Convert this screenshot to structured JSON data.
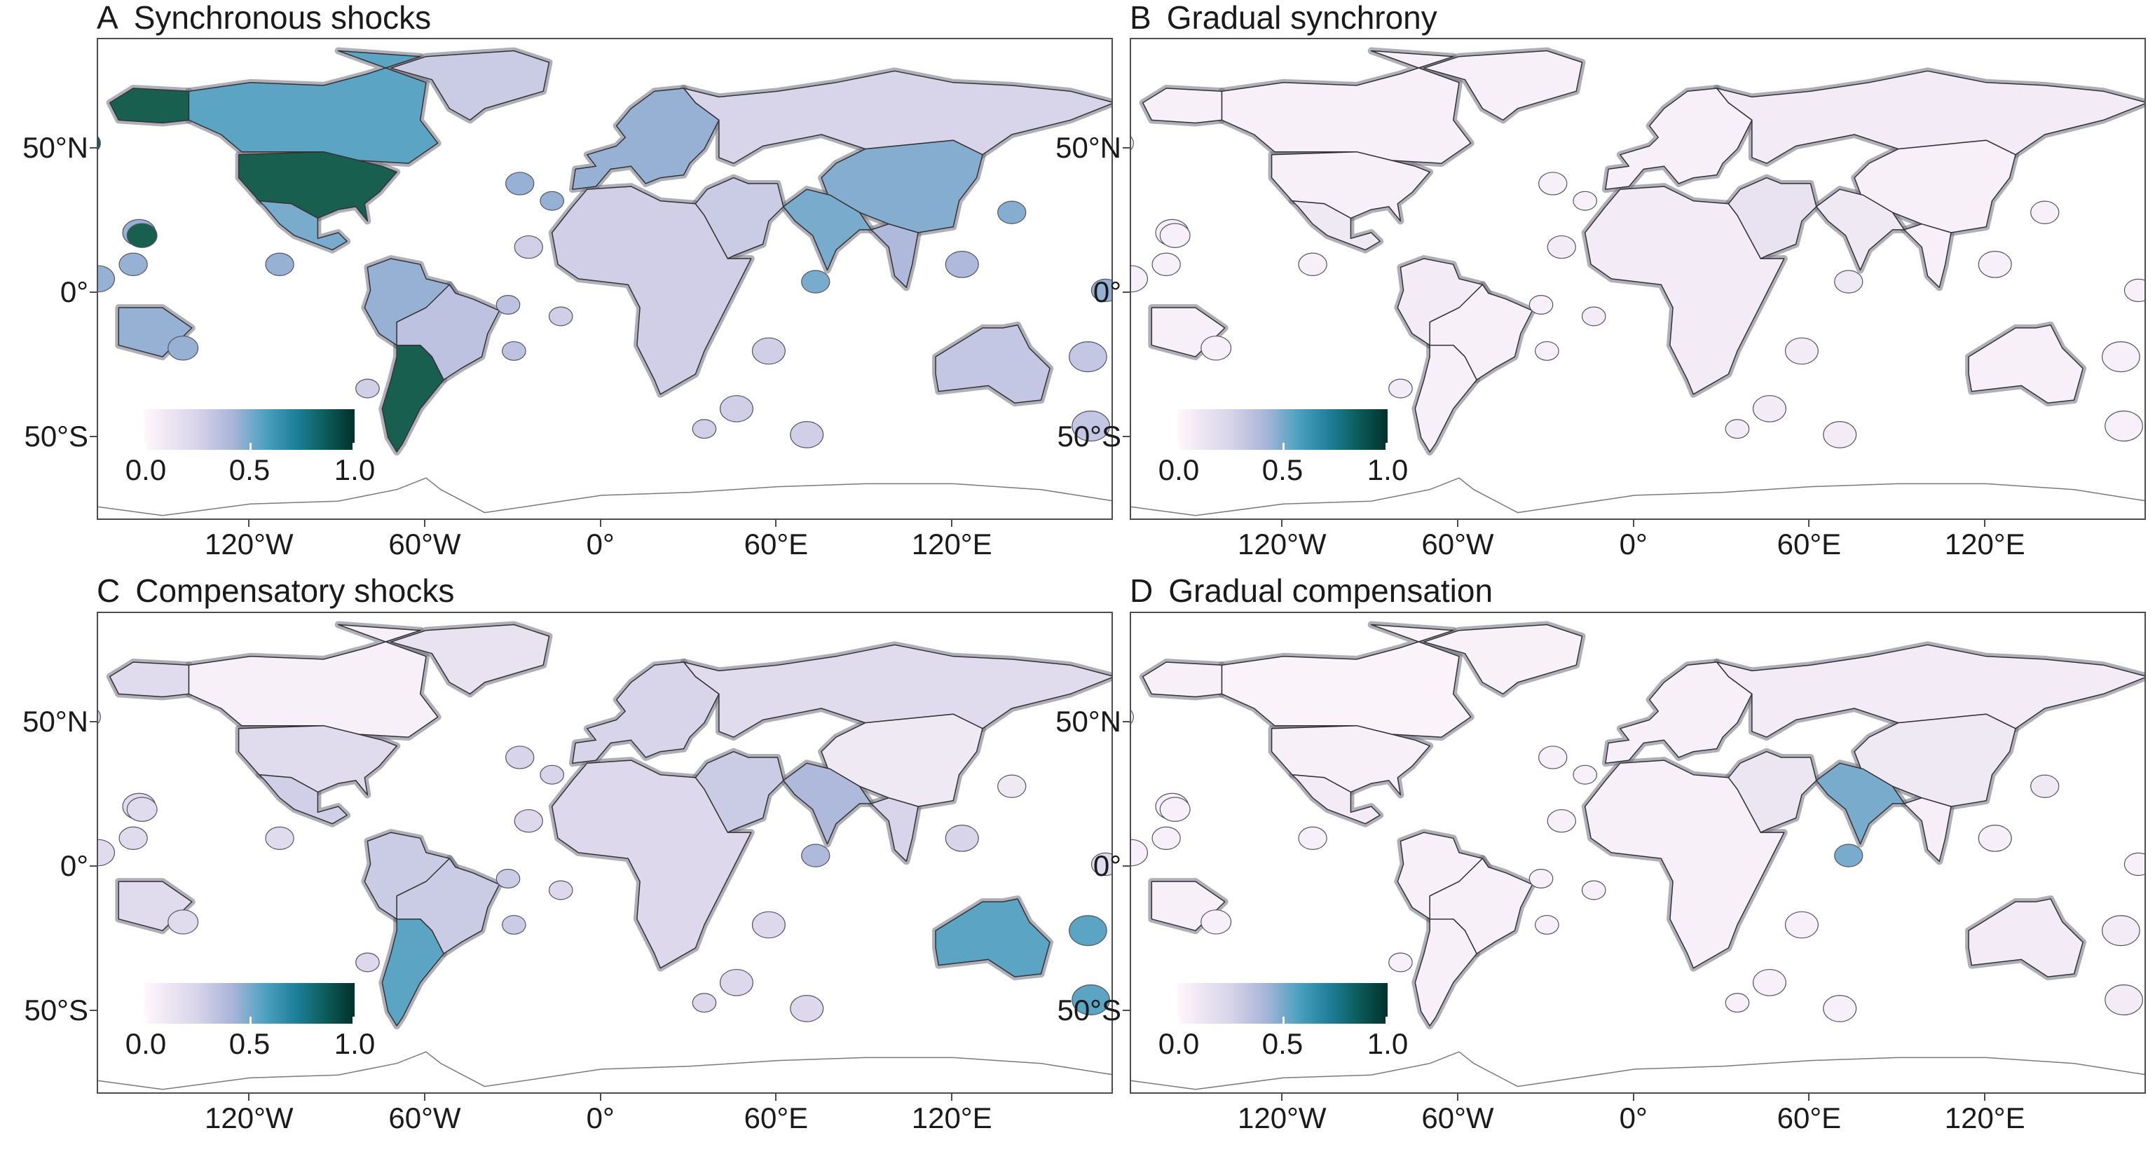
{
  "panels": [
    {
      "letter": "A",
      "title": "Synchronous shocks"
    },
    {
      "letter": "B",
      "title": "Gradual synchrony"
    },
    {
      "letter": "C",
      "title": "Compensatory shocks"
    },
    {
      "letter": "D",
      "title": "Gradual compensation"
    }
  ],
  "axes": {
    "y_labels": [
      "50°N",
      "0°",
      "50°S"
    ],
    "x_labels": [
      "120°W",
      "60°W",
      "0°",
      "60°E",
      "120°E"
    ]
  },
  "legend": {
    "labels": [
      "0.0",
      "0.5",
      "1.0"
    ],
    "colors": [
      "#fff7fb",
      "#d8d4ea",
      "#a8b5d9",
      "#4aa0bf",
      "#1f7f9a",
      "#0d5f5f",
      "#02302a"
    ],
    "range": [
      0,
      1
    ]
  },
  "map_colors": {
    "ocean": "#ffffff",
    "border": "#333333",
    "eez_border": "#6f6f80",
    "outline": "#7a7a7a"
  },
  "region_values": {
    "A": {
      "north_america_north": 0.55,
      "usa": 0.88,
      "alaska": 0.88,
      "mexico": 0.5,
      "south_america_east": 0.35,
      "argentina": 0.88,
      "south_america_west": 0.45,
      "greenland": 0.3,
      "russia": 0.25,
      "europe": 0.45,
      "africa": 0.28,
      "middle_east": 0.3,
      "china": 0.48,
      "south_asia": 0.5,
      "southeast_asia": 0.4,
      "australia": 0.32,
      "pacific_islands": 0.45
    },
    "B": {
      "north_america_north": 0.05,
      "usa": 0.05,
      "alaska": 0.05,
      "mexico": 0.1,
      "south_america_east": 0.05,
      "argentina": 0.05,
      "south_america_west": 0.08,
      "greenland": 0.05,
      "russia": 0.08,
      "europe": 0.05,
      "africa": 0.08,
      "middle_east": 0.15,
      "china": 0.05,
      "south_asia": 0.1,
      "southeast_asia": 0.05,
      "australia": 0.05,
      "pacific_islands": 0.05
    },
    "C": {
      "north_america_north": 0.05,
      "usa": 0.2,
      "alaska": 0.2,
      "mexico": 0.28,
      "south_america_east": 0.3,
      "argentina": 0.55,
      "south_america_west": 0.3,
      "greenland": 0.15,
      "russia": 0.2,
      "europe": 0.25,
      "africa": 0.22,
      "middle_east": 0.3,
      "china": 0.1,
      "south_asia": 0.4,
      "southeast_asia": 0.25,
      "australia": 0.55,
      "pacific_islands": 0.2
    },
    "D": {
      "north_america_north": 0.03,
      "usa": 0.05,
      "alaska": 0.05,
      "mexico": 0.08,
      "south_america_east": 0.05,
      "argentina": 0.05,
      "south_america_west": 0.05,
      "greenland": 0.04,
      "russia": 0.08,
      "europe": 0.05,
      "africa": 0.05,
      "middle_east": 0.12,
      "china": 0.1,
      "south_asia": 0.5,
      "southeast_asia": 0.06,
      "australia": 0.08,
      "pacific_islands": 0.05
    }
  }
}
